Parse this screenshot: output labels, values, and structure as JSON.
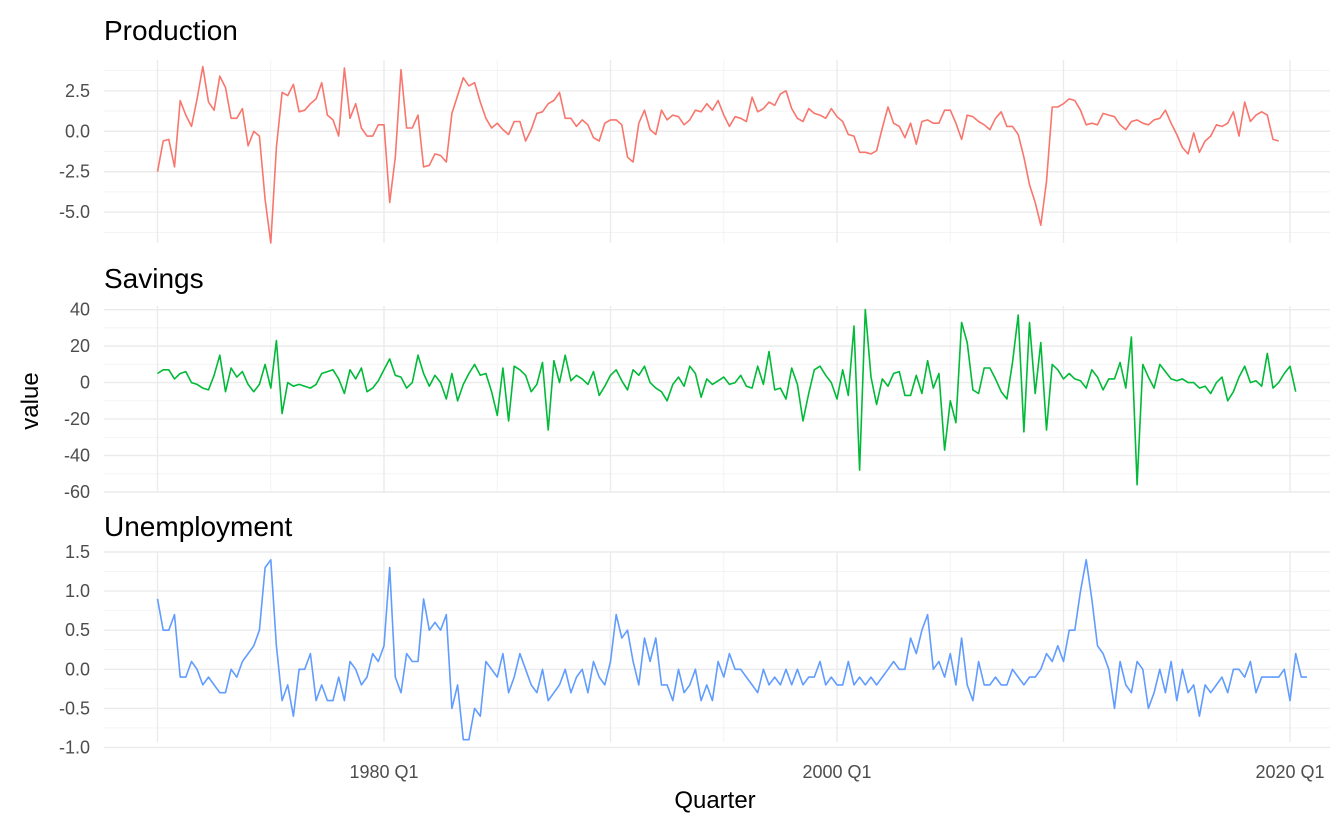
{
  "chart_data": {
    "type": "line",
    "xlabel": "Quarter",
    "ylabel": "value",
    "x_start": "1970 Q1",
    "x_end": "2019 Q2",
    "x_ticks": [
      "1980 Q1",
      "2000 Q1",
      "2020 Q1"
    ],
    "grid": true,
    "legend": "none",
    "facets": [
      {
        "title": "Production",
        "color": "#F8766D",
        "ylim": [
          -6.9,
          4.4
        ],
        "yticks": [
          -5.0,
          -2.5,
          0.0,
          2.5
        ],
        "tick_labels": [
          "-5.0",
          "-2.5",
          "0.0",
          "2.5"
        ],
        "values": [
          -2.5,
          -0.6,
          -0.5,
          -2.2,
          1.9,
          1.0,
          0.3,
          2.0,
          4.0,
          1.8,
          1.3,
          3.4,
          2.7,
          0.8,
          0.8,
          1.4,
          -0.9,
          0.0,
          -0.3,
          -4.2,
          -6.9,
          -1.0,
          2.4,
          2.2,
          2.9,
          1.2,
          1.3,
          1.7,
          2.0,
          3.0,
          1.0,
          0.7,
          -0.3,
          3.9,
          0.8,
          1.7,
          0.2,
          -0.3,
          -0.3,
          0.4,
          0.4,
          -4.4,
          -1.6,
          3.8,
          0.2,
          0.2,
          1.0,
          -2.2,
          -2.1,
          -1.4,
          -1.5,
          -1.9,
          1.1,
          2.2,
          3.3,
          2.8,
          3.0,
          1.8,
          0.8,
          0.2,
          0.5,
          0.1,
          -0.2,
          0.6,
          0.6,
          -0.6,
          0.1,
          1.1,
          1.2,
          1.7,
          1.9,
          2.4,
          0.8,
          0.8,
          0.3,
          0.7,
          0.4,
          -0.4,
          -0.6,
          0.5,
          0.7,
          0.7,
          0.4,
          -1.6,
          -1.9,
          0.5,
          1.3,
          0.1,
          -0.2,
          1.3,
          0.7,
          1.0,
          0.9,
          0.4,
          0.7,
          1.3,
          1.2,
          1.7,
          1.3,
          1.9,
          1.0,
          0.3,
          0.9,
          0.8,
          0.6,
          2.1,
          1.2,
          1.4,
          1.8,
          1.6,
          2.3,
          2.5,
          1.4,
          0.8,
          0.6,
          1.4,
          1.1,
          1.0,
          0.8,
          1.4,
          0.9,
          0.6,
          -0.2,
          -0.3,
          -1.3,
          -1.3,
          -1.4,
          -1.2,
          0.2,
          1.5,
          0.5,
          0.3,
          -0.4,
          0.5,
          -0.8,
          0.6,
          0.7,
          0.5,
          0.5,
          1.3,
          1.3,
          0.5,
          -0.5,
          1.0,
          0.9,
          0.6,
          0.4,
          0.1,
          0.8,
          1.2,
          0.3,
          0.3,
          -0.2,
          -1.6,
          -3.3,
          -4.4,
          -5.8,
          -3.1,
          1.5,
          1.5,
          1.7,
          2.0,
          1.9,
          1.3,
          0.4,
          0.5,
          0.4,
          1.1,
          1.0,
          0.9,
          0.4,
          0.1,
          0.6,
          0.7,
          0.5,
          0.4,
          0.7,
          0.8,
          1.3,
          0.5,
          -0.2,
          -1.0,
          -1.4,
          -0.1,
          -1.3,
          -0.6,
          -0.3,
          0.4,
          0.3,
          0.5,
          1.2,
          -0.3,
          1.8,
          0.6,
          1.0,
          1.2,
          1.0,
          -0.5,
          -0.6
        ]
      },
      {
        "title": "Savings",
        "color": "#00BA38",
        "ylim": [
          -60,
          42
        ],
        "yticks": [
          -60,
          -40,
          -20,
          0,
          20,
          40
        ],
        "tick_labels": [
          "-60",
          "-40",
          "-20",
          "0",
          "20",
          "40"
        ],
        "values": [
          5,
          7,
          7,
          2,
          5,
          6,
          0,
          -1,
          -3,
          -4,
          4,
          15,
          -5,
          8,
          3,
          6,
          -1,
          -5,
          -1,
          10,
          -3,
          23,
          -17,
          0,
          -2,
          -1,
          -2,
          -3,
          -1,
          5,
          6,
          7,
          2,
          -6,
          7,
          2,
          8,
          -5,
          -3,
          1,
          7,
          13,
          4,
          3,
          -3,
          0,
          15,
          5,
          -2,
          4,
          0,
          -9,
          5,
          -10,
          -1,
          5,
          10,
          4,
          5,
          -5,
          -18,
          8,
          -21,
          9,
          7,
          4,
          -5,
          -1,
          11,
          -26,
          12,
          0,
          15,
          1,
          4,
          2,
          -1,
          6,
          -7,
          -2,
          4,
          7,
          1,
          -4,
          7,
          4,
          9,
          0,
          -3,
          -5,
          -10,
          -1,
          3,
          -2,
          9,
          5,
          -8,
          2,
          -1,
          1,
          3,
          -1,
          0,
          4,
          -2,
          -3,
          9,
          -1,
          17,
          -4,
          -3,
          -9,
          8,
          -1,
          -21,
          -6,
          7,
          9,
          4,
          0,
          -9,
          7,
          -7,
          31,
          -48,
          40,
          3,
          -12,
          2,
          -2,
          5,
          6,
          -7,
          -7,
          4,
          -6,
          12,
          -3,
          5,
          -37,
          -10,
          -22,
          33,
          22,
          -4,
          -6,
          8,
          8,
          2,
          -5,
          -9,
          11,
          37,
          -27,
          33,
          -6,
          22,
          -26,
          10,
          7,
          2,
          5,
          2,
          1,
          -3,
          7,
          3,
          -4,
          2,
          2,
          11,
          -3,
          25,
          -56,
          10,
          3,
          -3,
          10,
          6,
          2,
          1,
          2,
          0,
          0,
          -3,
          -2,
          -6,
          0,
          3,
          -10,
          -5,
          3,
          9,
          0,
          1,
          -2,
          16,
          -3,
          0,
          5,
          9,
          -5
        ]
      },
      {
        "title": "Unemployment",
        "color": "#619CFF",
        "ylim": [
          -0.93,
          1.5
        ],
        "yticks": [
          -1.0,
          -0.5,
          0.0,
          0.5,
          1.0,
          1.5
        ],
        "tick_labels": [
          "-1.0",
          "-0.5",
          "0.0",
          "0.5",
          "1.0",
          "1.5"
        ],
        "values": [
          0.9,
          0.5,
          0.5,
          0.7,
          -0.1,
          -0.1,
          0.1,
          0.0,
          -0.2,
          -0.1,
          -0.2,
          -0.3,
          -0.3,
          0.0,
          -0.1,
          0.1,
          0.2,
          0.3,
          0.5,
          1.3,
          1.4,
          0.3,
          -0.4,
          -0.2,
          -0.6,
          0.0,
          0.0,
          0.2,
          -0.4,
          -0.2,
          -0.4,
          -0.4,
          -0.1,
          -0.4,
          0.1,
          0.0,
          -0.2,
          -0.1,
          0.2,
          0.1,
          0.3,
          1.3,
          -0.1,
          -0.3,
          0.2,
          0.1,
          0.1,
          0.9,
          0.5,
          0.6,
          0.5,
          0.7,
          -0.5,
          -0.2,
          -0.9,
          -0.9,
          -0.5,
          -0.6,
          0.1,
          0.0,
          -0.1,
          0.2,
          -0.3,
          -0.1,
          0.2,
          0.0,
          -0.2,
          -0.3,
          0.0,
          -0.4,
          -0.3,
          -0.2,
          0.0,
          -0.3,
          -0.1,
          0.0,
          -0.3,
          0.1,
          -0.1,
          -0.2,
          0.1,
          0.7,
          0.4,
          0.5,
          0.1,
          -0.2,
          0.4,
          0.1,
          0.4,
          -0.2,
          -0.2,
          -0.4,
          0.0,
          -0.3,
          -0.2,
          0.0,
          -0.4,
          -0.2,
          -0.4,
          0.1,
          -0.1,
          0.2,
          0.0,
          0.0,
          -0.1,
          -0.2,
          -0.3,
          0.0,
          -0.2,
          -0.1,
          -0.2,
          0.0,
          -0.2,
          0.0,
          -0.2,
          -0.1,
          -0.1,
          0.1,
          -0.2,
          -0.1,
          -0.2,
          -0.2,
          0.1,
          -0.2,
          -0.1,
          -0.2,
          -0.1,
          -0.2,
          -0.1,
          0.0,
          0.1,
          0.0,
          0.0,
          0.4,
          0.2,
          0.5,
          0.7,
          0.0,
          0.1,
          -0.1,
          0.2,
          -0.2,
          0.4,
          -0.2,
          -0.4,
          0.1,
          -0.2,
          -0.2,
          -0.1,
          -0.2,
          -0.2,
          0.0,
          -0.1,
          -0.2,
          -0.1,
          -0.1,
          0.0,
          0.2,
          0.1,
          0.3,
          0.1,
          0.5,
          0.5,
          1.0,
          1.4,
          0.9,
          0.3,
          0.2,
          0.0,
          -0.5,
          0.1,
          -0.2,
          -0.3,
          0.1,
          0.0,
          -0.5,
          -0.3,
          0.0,
          -0.3,
          0.1,
          -0.4,
          0.0,
          -0.3,
          -0.2,
          -0.6,
          -0.2,
          -0.3,
          -0.2,
          -0.1,
          -0.3,
          0.0,
          0.0,
          -0.1,
          0.1,
          -0.3,
          -0.1,
          -0.1,
          -0.1,
          -0.1,
          0.0,
          -0.4,
          0.2,
          -0.1,
          -0.1
        ]
      }
    ]
  }
}
